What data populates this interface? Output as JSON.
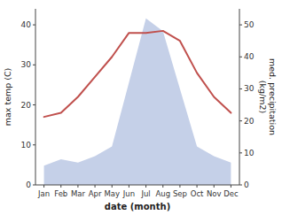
{
  "chart_data": {
    "type": "line",
    "x_label": "date (month)",
    "y_label": "max temp (C)",
    "y2_label": "med. precipitation\n(kg/m2)",
    "categories": [
      "Jan",
      "Feb",
      "Mar",
      "Apr",
      "May",
      "Jun",
      "Jul",
      "Aug",
      "Sep",
      "Oct",
      "Nov",
      "Dec"
    ],
    "series": [
      {
        "type": "area",
        "axis": "y2",
        "color": "#c5d0e8",
        "values": [
          6,
          8,
          7,
          9,
          12,
          32,
          52,
          48,
          30,
          12,
          9,
          7
        ]
      },
      {
        "type": "line",
        "color": "#c0504d",
        "values": [
          17,
          18,
          22,
          27,
          32,
          38,
          38,
          38.5,
          36,
          28,
          22,
          18
        ]
      }
    ],
    "ylim": [
      0,
      44
    ],
    "yticks": [
      0,
      10,
      20,
      30,
      40
    ],
    "y2lim": [
      0,
      55
    ],
    "y2ticks": [
      0,
      10,
      20,
      30,
      40,
      50
    ],
    "grid": false
  }
}
